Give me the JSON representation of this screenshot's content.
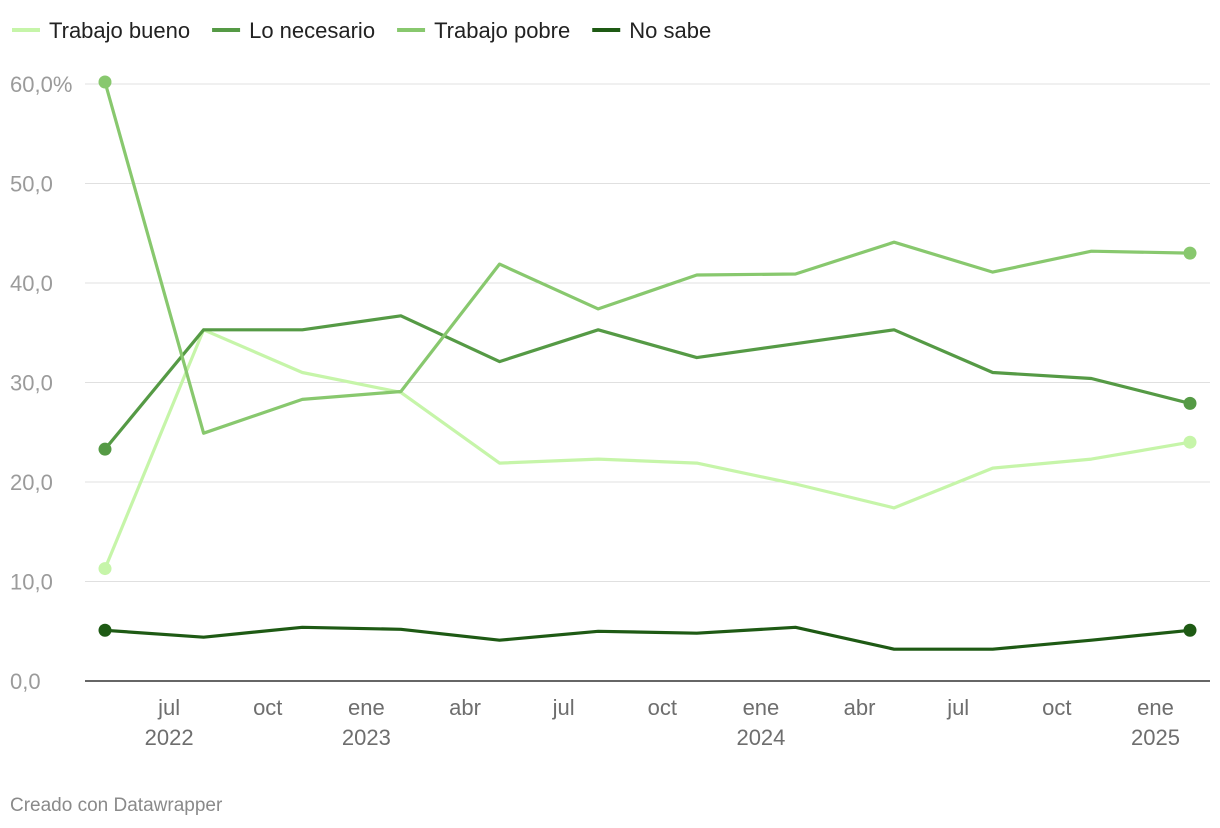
{
  "chart_data": {
    "type": "line",
    "title": "",
    "xlabel": "",
    "ylabel": "",
    "ylim": [
      0,
      60
    ],
    "grid": true,
    "legend_position": "top-left",
    "y_ticks": [
      {
        "value": 0,
        "label": "0,0"
      },
      {
        "value": 10,
        "label": "10,0"
      },
      {
        "value": 20,
        "label": "20,0"
      },
      {
        "value": 30,
        "label": "30,0"
      },
      {
        "value": 40,
        "label": "40,0"
      },
      {
        "value": 50,
        "label": "50,0"
      },
      {
        "value": 60,
        "label": "60,0%"
      }
    ],
    "x_ticks": [
      {
        "index": 0.65,
        "label": "jul",
        "year": "2022"
      },
      {
        "index": 1.65,
        "label": "oct",
        "year": ""
      },
      {
        "index": 2.65,
        "label": "ene",
        "year": "2023"
      },
      {
        "index": 3.65,
        "label": "abr",
        "year": ""
      },
      {
        "index": 4.65,
        "label": "jul",
        "year": ""
      },
      {
        "index": 5.65,
        "label": "oct",
        "year": ""
      },
      {
        "index": 6.65,
        "label": "ene",
        "year": "2024"
      },
      {
        "index": 7.65,
        "label": "abr",
        "year": ""
      },
      {
        "index": 8.65,
        "label": "jul",
        "year": ""
      },
      {
        "index": 9.65,
        "label": "oct",
        "year": ""
      },
      {
        "index": 10.65,
        "label": "ene",
        "year": "2025"
      }
    ],
    "x_count": 12,
    "series": [
      {
        "name": "Trabajo bueno",
        "color": "#c6f5a9",
        "values": [
          11.3,
          35.3,
          31.0,
          29.0,
          21.9,
          22.3,
          21.9,
          19.8,
          17.4,
          21.4,
          22.3,
          24.0
        ]
      },
      {
        "name": "Lo necesario",
        "color": "#559a45",
        "values": [
          23.3,
          35.3,
          35.3,
          36.7,
          32.1,
          35.3,
          32.5,
          33.9,
          35.3,
          31.0,
          30.4,
          27.9
        ]
      },
      {
        "name": "Trabajo pobre",
        "color": "#88c86e",
        "values": [
          60.2,
          24.9,
          28.3,
          29.1,
          41.9,
          37.4,
          40.8,
          40.9,
          44.1,
          41.1,
          43.2,
          43.0
        ]
      },
      {
        "name": "No sabe",
        "color": "#1e5a14",
        "values": [
          5.1,
          4.4,
          5.4,
          5.2,
          4.1,
          5.0,
          4.8,
          5.4,
          3.2,
          3.2,
          4.1,
          5.1
        ]
      }
    ]
  },
  "footer": {
    "credit": "Creado con Datawrapper"
  }
}
